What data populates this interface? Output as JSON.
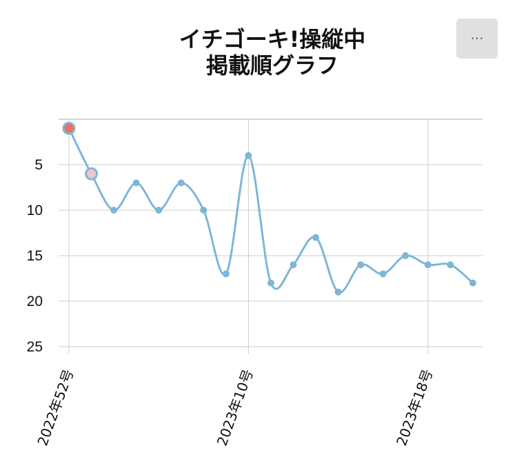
{
  "title_lines": [
    "イチゴーキ!操縦中",
    "掲載順グラフ"
  ],
  "menu_label": "···",
  "chart_data": {
    "type": "line",
    "title": "イチゴーキ!操縦中 掲載順グラフ",
    "series_color": "#7eb6d6",
    "highlight_colors": [
      "#e8735a",
      "#f2c4c4"
    ],
    "y_inverted": true,
    "ylim": [
      0,
      25
    ],
    "yticks": [
      "5",
      "10",
      "15",
      "20",
      "25"
    ],
    "xtick_labels": [
      {
        "index": 0,
        "label": "2022年52号"
      },
      {
        "index": 8,
        "label": "2023年10号"
      },
      {
        "index": 16,
        "label": "2023年18号"
      }
    ],
    "values": [
      1,
      6,
      10,
      7,
      10,
      7,
      10,
      17,
      4,
      18,
      16,
      13,
      19,
      16,
      17,
      15,
      16,
      16,
      18
    ],
    "grid": true
  }
}
